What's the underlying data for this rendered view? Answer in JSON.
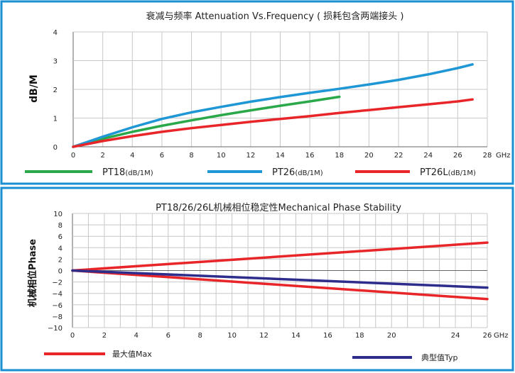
{
  "chart_data": [
    {
      "type": "line",
      "title": "衰减与频率 Attenuation Vs.Frequency ( 损耗包含两端接头 )",
      "ylabel": "dB/M",
      "x_unit": "GHz",
      "xlim": [
        0,
        28
      ],
      "ylim": [
        0,
        4
      ],
      "x_ticks": [
        "0",
        "2",
        "4",
        "6",
        "8",
        "10",
        "12",
        "14",
        "16",
        "18",
        "20",
        "22",
        "24",
        "26",
        "28"
      ],
      "y_ticks": [
        "0",
        "1",
        "2",
        "3",
        "4"
      ],
      "grid": true,
      "legend_position": "bottom",
      "series": [
        {
          "name": "PT18",
          "legend_unit": "(dB/1M)",
          "color": "#2aa84a",
          "x": [
            0,
            2,
            4,
            6,
            8,
            10,
            12,
            14,
            16,
            18
          ],
          "y": [
            0,
            0.28,
            0.52,
            0.73,
            0.92,
            1.1,
            1.27,
            1.43,
            1.58,
            1.74
          ]
        },
        {
          "name": "PT26",
          "legend_unit": "(dB/1M)",
          "color": "#1f97d4",
          "x": [
            0,
            2,
            4,
            6,
            8,
            10,
            12,
            14,
            16,
            18,
            20,
            22,
            24,
            26,
            27
          ],
          "y": [
            0,
            0.35,
            0.68,
            0.97,
            1.2,
            1.39,
            1.57,
            1.73,
            1.88,
            2.02,
            2.17,
            2.33,
            2.52,
            2.74,
            2.87
          ]
        },
        {
          "name": "PT26L",
          "legend_unit": "(dB/1M)",
          "color": "#e8262a",
          "x": [
            0,
            2,
            4,
            6,
            8,
            10,
            12,
            14,
            16,
            18,
            20,
            22,
            24,
            26,
            27
          ],
          "y": [
            0,
            0.2,
            0.37,
            0.52,
            0.65,
            0.76,
            0.87,
            0.97,
            1.07,
            1.18,
            1.28,
            1.38,
            1.48,
            1.58,
            1.65
          ]
        }
      ]
    },
    {
      "type": "line",
      "title": "PT18/26/26L机械相位稳定性Mechanical Phase Stability",
      "ylabel": "机械相位Phase",
      "x_unit": "GHz",
      "xlim": [
        0,
        26
      ],
      "ylim": [
        -10,
        10
      ],
      "x_ticks": [
        "0",
        "2",
        "4",
        "6",
        "8",
        "10",
        "12",
        "14",
        "16",
        "18",
        "20",
        "24",
        "26"
      ],
      "y_ticks": [
        "10",
        "8",
        "6",
        "4",
        "2",
        "0",
        "−2",
        "−4",
        "−6",
        "−8",
        "−10"
      ],
      "grid": true,
      "legend_position": "bottom",
      "series": [
        {
          "name": "最大值Max",
          "color": "#e8262a",
          "x": [
            0,
            26
          ],
          "y": [
            0,
            4.9
          ]
        },
        {
          "name": "最大值Max",
          "color": "#e8262a",
          "x": [
            0,
            26
          ],
          "y": [
            0,
            -5.0
          ]
        },
        {
          "name": "典型值Typ",
          "color": "#2e2d8c",
          "x": [
            0,
            26
          ],
          "y": [
            0,
            -3.0
          ]
        }
      ]
    }
  ]
}
